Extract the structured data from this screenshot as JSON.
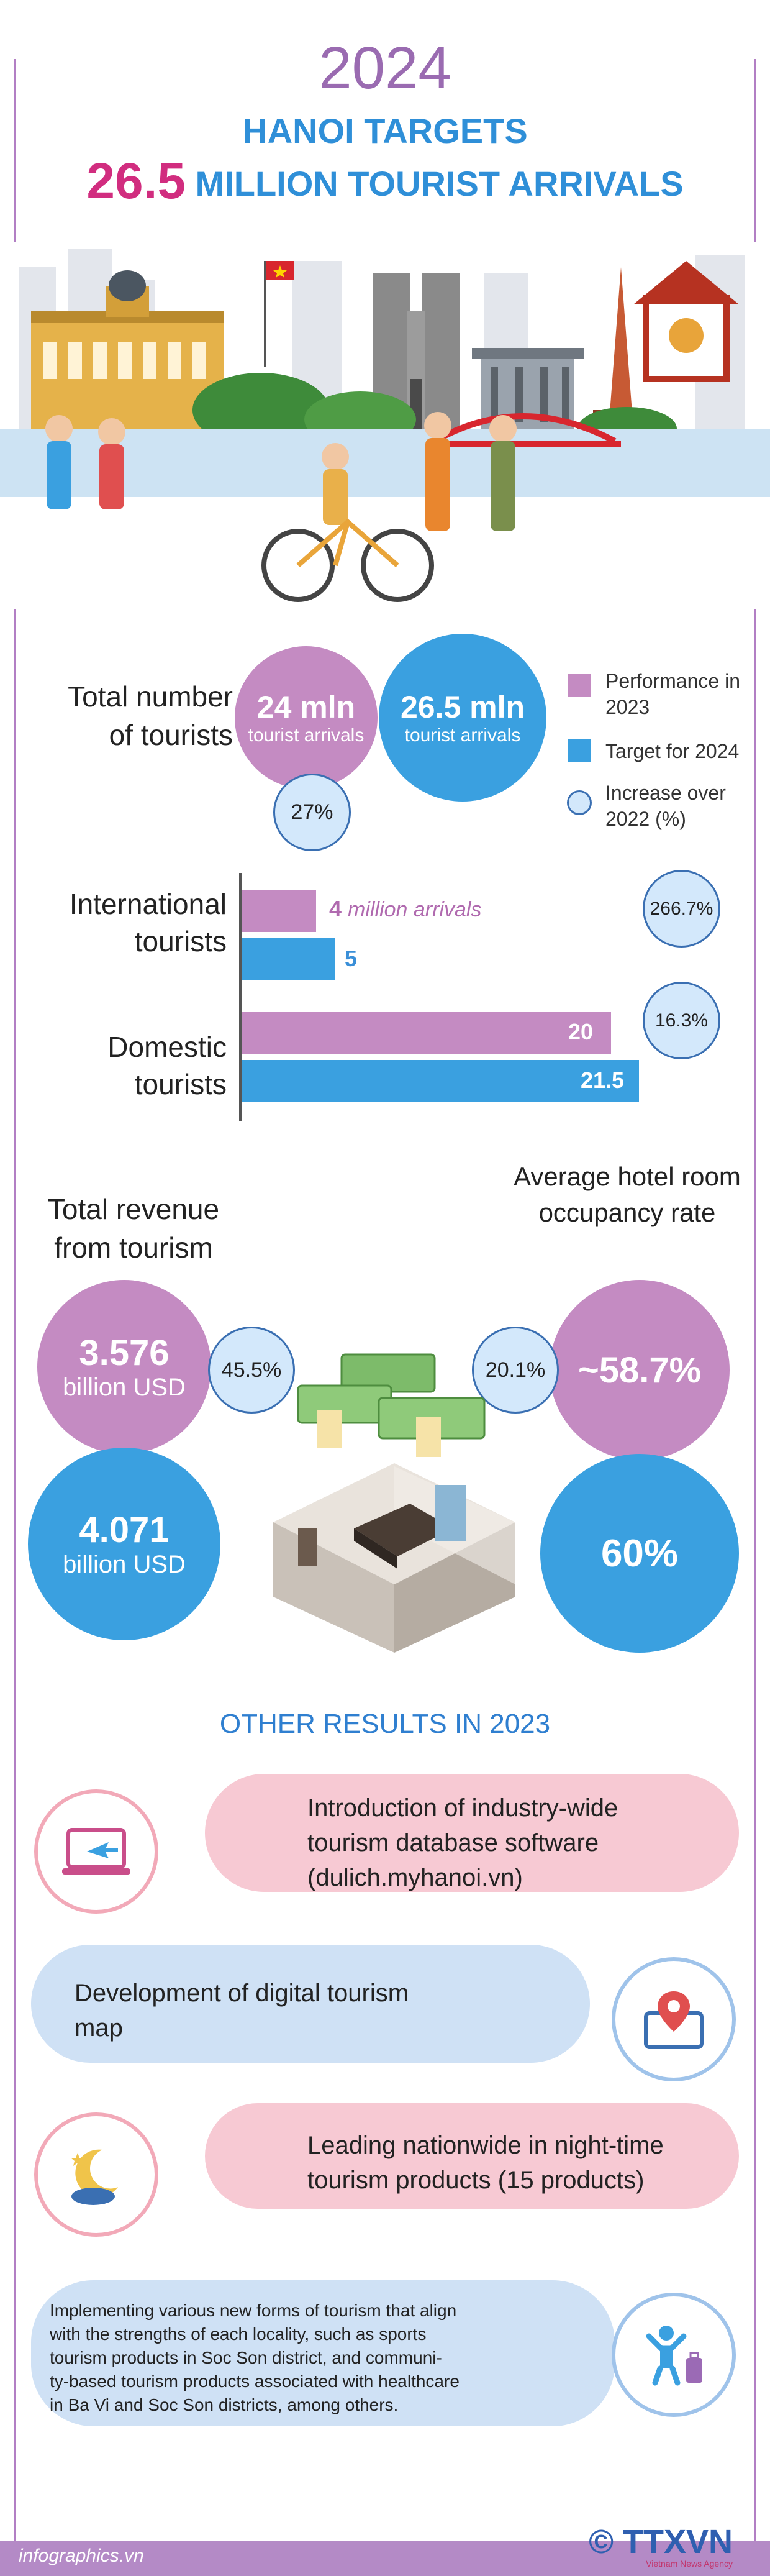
{
  "header": {
    "year": "2024",
    "title_line1": "HANOI TARGETS",
    "title_number": "26.5",
    "title_line2_rest": "MILLION TOURIST ARRIVALS"
  },
  "total": {
    "label_line1": "Total number",
    "label_line2": "of tourists",
    "perf_value": "24 mln",
    "perf_unit": "tourist arrivals",
    "target_value": "26.5 mln",
    "target_unit": "tourist arrivals",
    "increase": "27%"
  },
  "legend": {
    "performance": "Performance in 2023",
    "target": "Target for 2024",
    "increase": "Increase over 2022 (%)"
  },
  "bars": {
    "international_label_1": "International",
    "international_label_2": "tourists",
    "international_perf": "4",
    "international_perf_unit": "million arrivals",
    "international_target": "5",
    "international_increase": "266.7%",
    "domestic_label_1": "Domestic",
    "domestic_label_2": "tourists",
    "domestic_perf": "20",
    "domestic_target": "21.5",
    "domestic_increase": "16.3%"
  },
  "revenue": {
    "label_line1": "Total revenue",
    "label_line2": "from tourism",
    "perf_value": "3.576",
    "perf_unit": "billion USD",
    "target_value": "4.071",
    "target_unit": "billion USD",
    "increase": "45.5%"
  },
  "occupancy": {
    "label_line1": "Average hotel room",
    "label_line2": "occupancy rate",
    "perf_value": "~58.7%",
    "target_value": "60%",
    "increase": "20.1%"
  },
  "other": {
    "title": "OTHER RESULTS IN 2023",
    "item1_l1": "Introduction of industry-wide",
    "item1_l2": "tourism database software",
    "item1_l3": "(dulich.myhanoi.vn)",
    "item2_l1": "Development of digital tourism",
    "item2_l2": "map",
    "item3_l1": "Leading nationwide in night-time",
    "item3_l2": "tourism products (15 products)",
    "item4_l1": "Implementing various new forms of tourism that align",
    "item4_l2": "with the strengths of each locality, such as sports",
    "item4_l3": "tourism products in Soc Son district, and communi-",
    "item4_l4": "ty-based tourism products associated with healthcare",
    "item4_l5": "in Ba Vi and Soc Son districts, among others."
  },
  "footer": {
    "site": "infographics.vn",
    "brand": "© TTXVN",
    "brand_sub": "Vietnam News Agency"
  },
  "colors": {
    "performance": "#c48bc2",
    "target": "#3aa0e0",
    "increase_fill": "#d3e8fb",
    "accent_pink": "#d12d7f"
  },
  "chart_data": {
    "type": "bar",
    "categories": [
      "International tourists",
      "Domestic tourists"
    ],
    "series": [
      {
        "name": "Performance in 2023",
        "values": [
          4,
          20
        ]
      },
      {
        "name": "Target for 2024",
        "values": [
          5,
          21.5
        ]
      }
    ],
    "increase_over_2022": [
      "266.7%",
      "16.3%"
    ]
  }
}
